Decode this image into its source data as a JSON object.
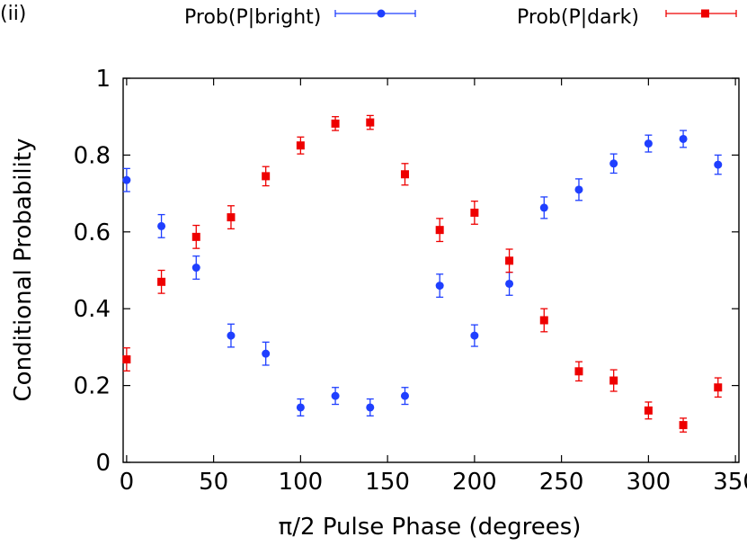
{
  "panel_label": "(ii)",
  "chart_data": {
    "type": "scatter",
    "title": "",
    "xlabel": "π/2 Pulse Phase (degrees)",
    "ylabel": "Conditional Probability",
    "xlim": [
      -2,
      352
    ],
    "ylim": [
      0,
      1
    ],
    "xticks": [
      0,
      50,
      100,
      150,
      200,
      250,
      300,
      350
    ],
    "yticks": [
      0,
      0.2,
      0.4,
      0.6,
      0.8,
      1
    ],
    "ytick_labels": [
      "0",
      "0.2",
      "0.4",
      "0.6",
      "0.8",
      "1"
    ],
    "legend_position": "top",
    "series": [
      {
        "name": "Prob(P|bright)",
        "color": "#1f3fff",
        "marker": "circle",
        "x": [
          0,
          20,
          40,
          60,
          80,
          100,
          120,
          140,
          160,
          180,
          200,
          220,
          240,
          260,
          280,
          300,
          320,
          340
        ],
        "y": [
          0.735,
          0.615,
          0.507,
          0.33,
          0.283,
          0.143,
          0.173,
          0.143,
          0.173,
          0.46,
          0.33,
          0.465,
          0.663,
          0.71,
          0.778,
          0.83,
          0.842,
          0.775
        ],
        "err": [
          0.03,
          0.03,
          0.03,
          0.03,
          0.03,
          0.022,
          0.022,
          0.022,
          0.022,
          0.03,
          0.028,
          0.03,
          0.028,
          0.028,
          0.025,
          0.022,
          0.022,
          0.025
        ]
      },
      {
        "name": "Prob(P|dark)",
        "color": "#ee0000",
        "marker": "square",
        "x": [
          0,
          20,
          40,
          60,
          80,
          100,
          120,
          140,
          160,
          180,
          200,
          220,
          240,
          260,
          280,
          300,
          320,
          340
        ],
        "y": [
          0.268,
          0.47,
          0.587,
          0.638,
          0.745,
          0.825,
          0.882,
          0.885,
          0.75,
          0.605,
          0.65,
          0.525,
          0.37,
          0.237,
          0.213,
          0.135,
          0.097,
          0.195
        ],
        "err": [
          0.03,
          0.03,
          0.03,
          0.03,
          0.025,
          0.022,
          0.018,
          0.018,
          0.028,
          0.03,
          0.03,
          0.03,
          0.03,
          0.025,
          0.028,
          0.022,
          0.018,
          0.025
        ]
      }
    ]
  }
}
